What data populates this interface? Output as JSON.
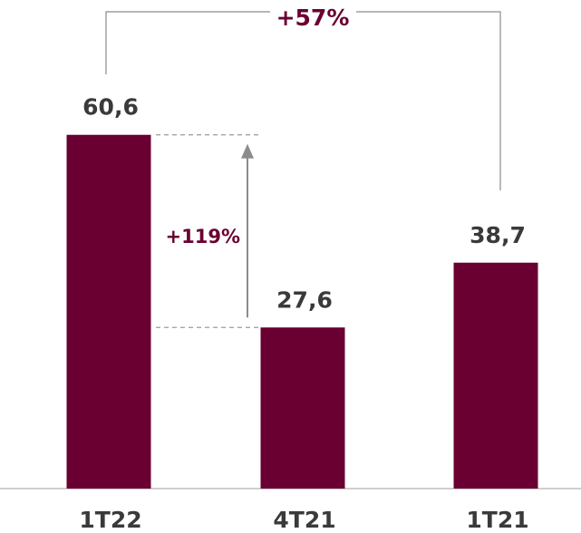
{
  "chart_data": {
    "type": "bar",
    "categories": [
      "1T22",
      "4T21",
      "1T21"
    ],
    "values": [
      60.6,
      27.6,
      38.7
    ],
    "value_labels": [
      "60,6",
      "27,6",
      "38,7"
    ],
    "ylim": [
      0,
      70
    ],
    "grid": false,
    "title": "",
    "xlabel": "",
    "ylabel": "",
    "annotations": [
      {
        "text": "+57%",
        "from": "1T22",
        "to": "1T21",
        "kind": "bracket"
      },
      {
        "text": "+119%",
        "from": "4T21",
        "to": "1T22",
        "kind": "arrow"
      }
    ]
  },
  "colors": {
    "bar": "#6a0032",
    "text": "#3a3a3a",
    "accent_text": "#6a0032",
    "lines": "#8c8c8c",
    "axis": "#bdbdbd"
  }
}
